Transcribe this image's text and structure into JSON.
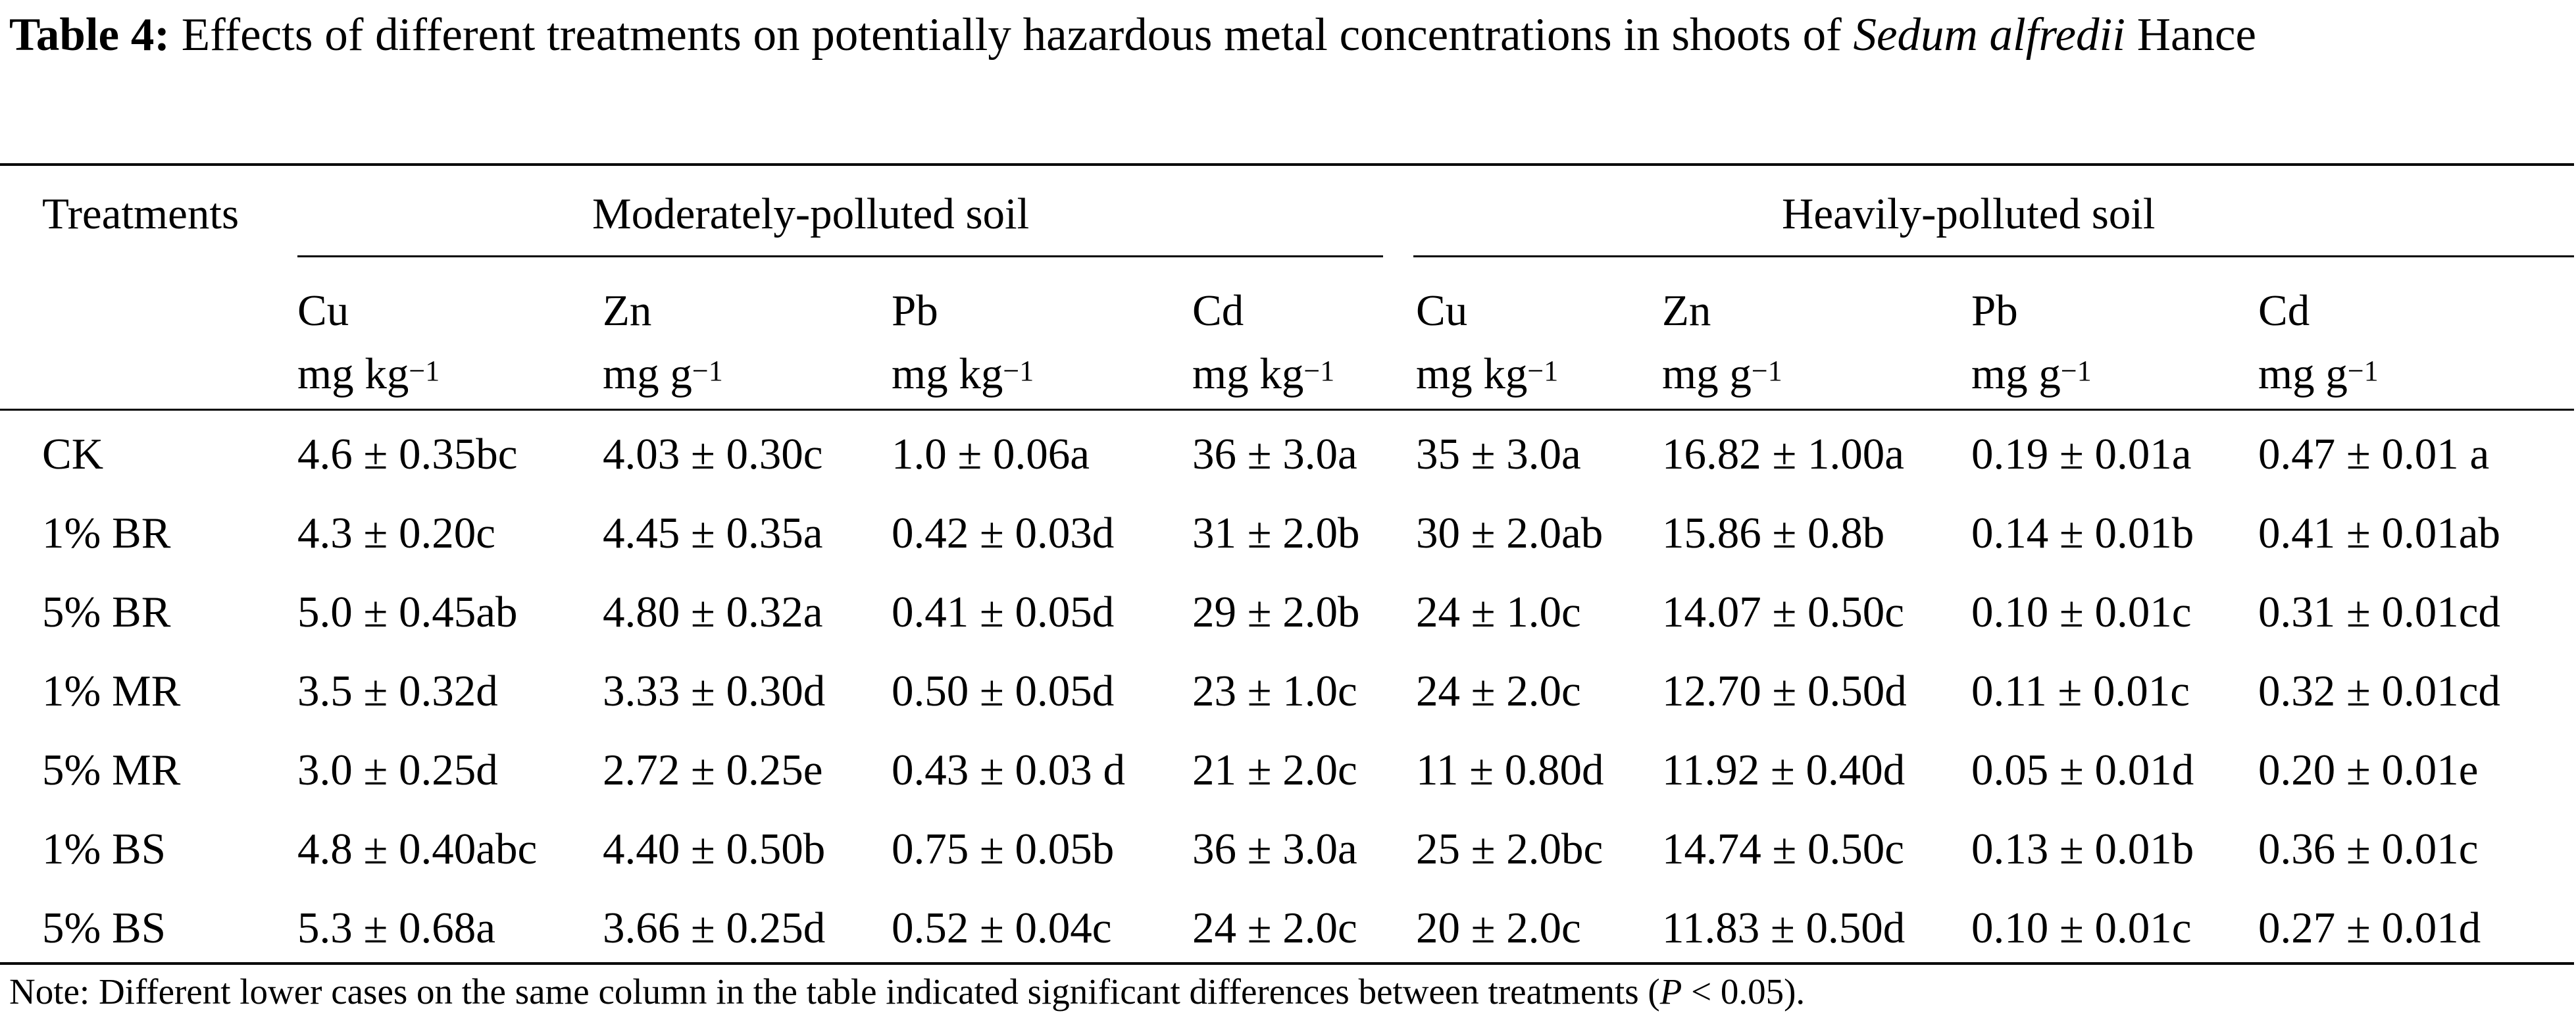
{
  "caption": {
    "label": "Table 4:",
    "text_before": "Effects of different treatments on potentially hazardous metal concentrations in shoots of",
    "species": "Sedum alfredii",
    "text_after": "Hance"
  },
  "header": {
    "treatments": "Treatments",
    "group_moderate": "Moderately-polluted soil",
    "group_heavy": "Heavily-polluted soil",
    "columns": [
      {
        "metal": "Cu",
        "unit": "mg kg",
        "exp": "−1"
      },
      {
        "metal": "Zn",
        "unit": "mg g",
        "exp": "−1"
      },
      {
        "metal": "Pb",
        "unit": "mg kg",
        "exp": "−1"
      },
      {
        "metal": "Cd",
        "unit": "mg kg",
        "exp": "−1"
      },
      {
        "metal": "Cu",
        "unit": "mg kg",
        "exp": "−1"
      },
      {
        "metal": "Zn",
        "unit": "mg g",
        "exp": "−1"
      },
      {
        "metal": "Pb",
        "unit": "mg g",
        "exp": "−1"
      },
      {
        "metal": "Cd",
        "unit": "mg g",
        "exp": "−1"
      }
    ]
  },
  "rows": [
    {
      "treatment": "CK",
      "values": [
        "4.6 ± 0.35bc",
        "4.03 ± 0.30c",
        "1.0 ± 0.06a",
        "36 ± 3.0a",
        "35 ± 3.0a",
        "16.82 ± 1.00a",
        "0.19 ± 0.01a",
        "0.47 ± 0.01 a"
      ]
    },
    {
      "treatment": "1% BR",
      "values": [
        "4.3 ± 0.20c",
        "4.45 ± 0.35a",
        "0.42 ± 0.03d",
        "31 ± 2.0b",
        "30 ± 2.0ab",
        "15.86 ± 0.8b",
        "0.14 ± 0.01b",
        "0.41 ± 0.01ab"
      ]
    },
    {
      "treatment": "5% BR",
      "values": [
        "5.0 ± 0.45ab",
        "4.80 ± 0.32a",
        "0.41 ± 0.05d",
        "29 ± 2.0b",
        "24 ± 1.0c",
        "14.07 ± 0.50c",
        "0.10 ± 0.01c",
        "0.31 ± 0.01cd"
      ]
    },
    {
      "treatment": "1% MR",
      "values": [
        "3.5 ± 0.32d",
        "3.33 ± 0.30d",
        "0.50 ± 0.05d",
        "23 ± 1.0c",
        "24 ± 2.0c",
        "12.70 ± 0.50d",
        "0.11 ± 0.01c",
        "0.32 ± 0.01cd"
      ]
    },
    {
      "treatment": "5% MR",
      "values": [
        "3.0 ± 0.25d",
        "2.72 ± 0.25e",
        "0.43 ± 0.03 d",
        "21 ± 2.0c",
        "11 ± 0.80d",
        "11.92 ± 0.40d",
        "0.05 ± 0.01d",
        "0.20 ± 0.01e"
      ]
    },
    {
      "treatment": "1% BS",
      "values": [
        "4.8 ± 0.40abc",
        "4.40 ± 0.50b",
        "0.75 ± 0.05b",
        "36 ± 3.0a",
        "25 ± 2.0bc",
        "14.74 ± 0.50c",
        "0.13 ± 0.01b",
        "0.36 ± 0.01c"
      ]
    },
    {
      "treatment": "5% BS",
      "values": [
        "5.3 ± 0.68a",
        "3.66 ± 0.25d",
        "0.52 ± 0.04c",
        "24 ± 2.0c",
        "20 ± 2.0c",
        "11.83 ± 0.50d",
        "0.10 ± 0.01c",
        "0.27 ± 0.01d"
      ]
    }
  ],
  "note": {
    "text_before": "Note: Different lower cases on the same column in the table indicated significant differences between treatments (",
    "p_symbol": "P",
    "text_after": " < 0.05)."
  }
}
